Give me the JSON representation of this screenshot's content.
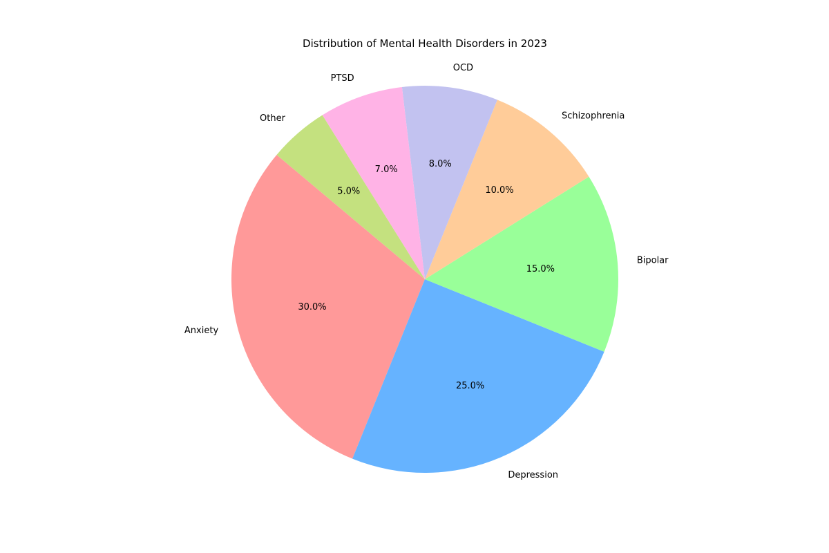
{
  "chart_data": {
    "type": "pie",
    "title": "Distribution of Mental Health Disorders in 2023",
    "start_angle_deg": 140,
    "direction": "counterclockwise",
    "slices": [
      {
        "label": "Anxiety",
        "value": 30.0,
        "pct_label": "30.0%",
        "color": "#ff9999"
      },
      {
        "label": "Depression",
        "value": 25.0,
        "pct_label": "25.0%",
        "color": "#66b3ff"
      },
      {
        "label": "Bipolar",
        "value": 15.0,
        "pct_label": "15.0%",
        "color": "#99ff99"
      },
      {
        "label": "Schizophrenia",
        "value": 10.0,
        "pct_label": "10.0%",
        "color": "#ffcc99"
      },
      {
        "label": "OCD",
        "value": 8.0,
        "pct_label": "8.0%",
        "color": "#c2c2f0"
      },
      {
        "label": "PTSD",
        "value": 7.0,
        "pct_label": "7.0%",
        "color": "#ffb3e6"
      },
      {
        "label": "Other",
        "value": 5.0,
        "pct_label": "5.0%",
        "color": "#c4e17f"
      }
    ]
  }
}
